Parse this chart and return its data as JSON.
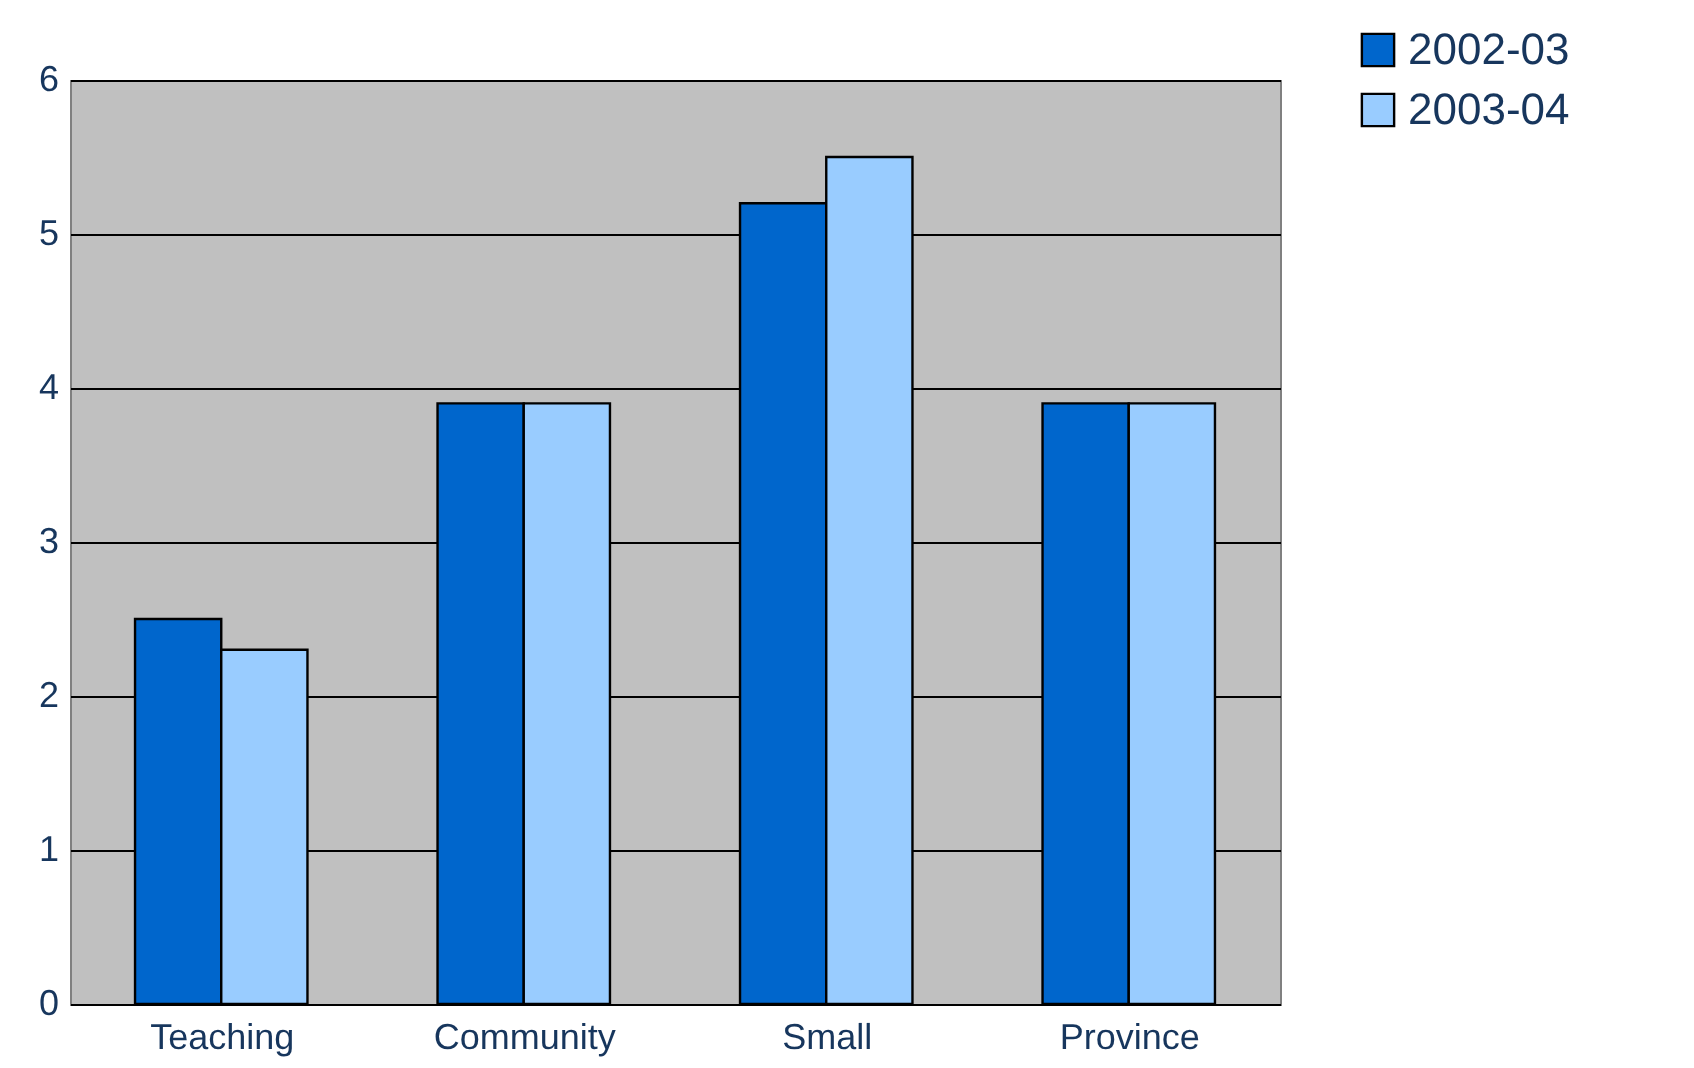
{
  "chart_data": {
    "type": "bar",
    "categories": [
      "Teaching",
      "Community",
      "Small",
      "Province"
    ],
    "series": [
      {
        "name": "2002-03",
        "color": "#0066cc",
        "values": [
          2.5,
          3.9,
          5.2,
          3.9
        ]
      },
      {
        "name": "2003-04",
        "color": "#99ccff",
        "values": [
          2.3,
          3.9,
          5.5,
          3.9
        ]
      }
    ],
    "ylim": [
      0,
      6
    ],
    "yticks": [
      0,
      1,
      2,
      3,
      4,
      5,
      6
    ],
    "grid": "y",
    "legend": "top right"
  }
}
